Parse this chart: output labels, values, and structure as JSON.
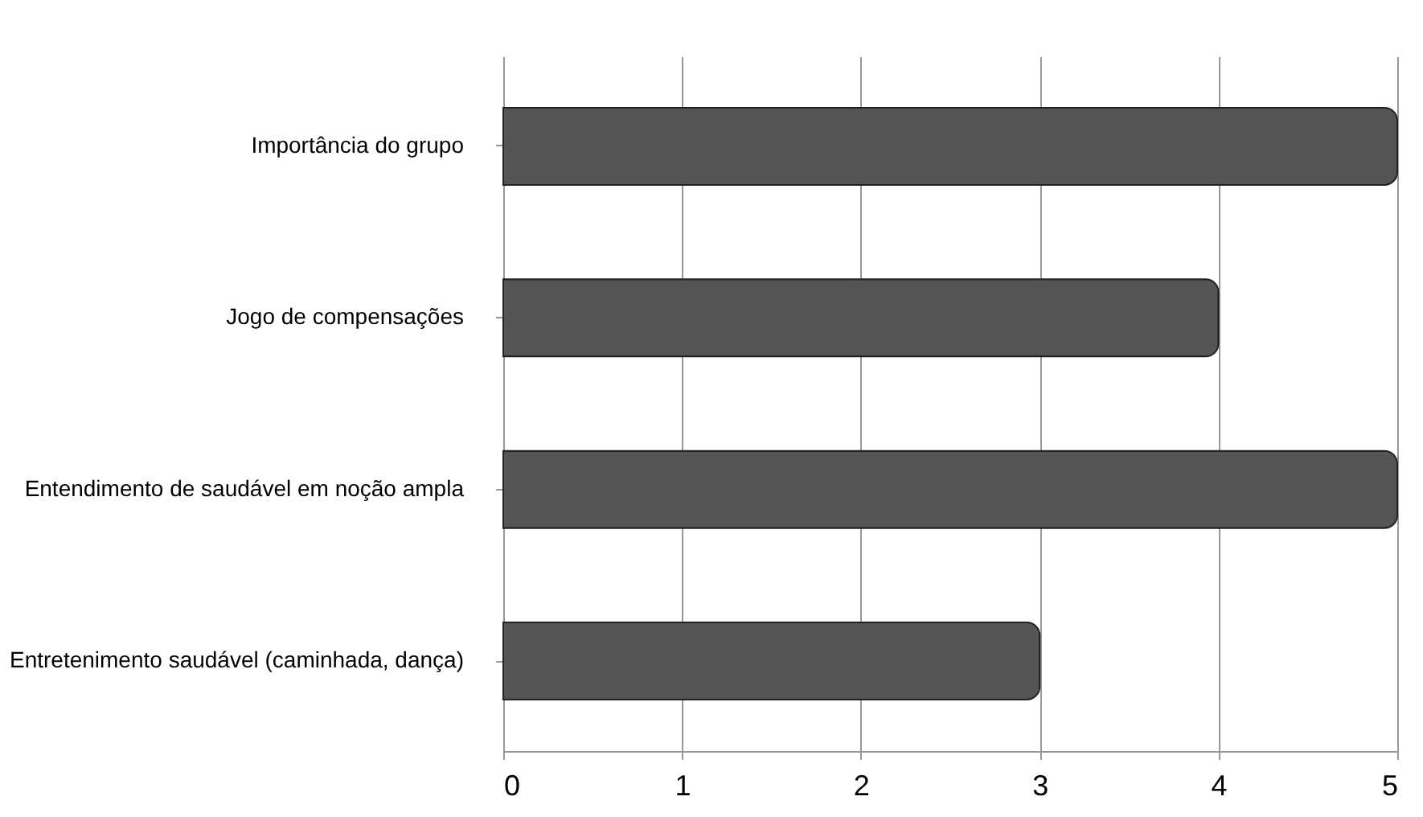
{
  "chart_data": {
    "type": "bar",
    "orientation": "horizontal",
    "categories": [
      "Importância do grupo",
      "Jogo de compensações",
      "Entendimento de saudável em noção ampla",
      "Entretenimento saudável (caminhada, dança)"
    ],
    "values": [
      5,
      4,
      5,
      3
    ],
    "color": "#555555",
    "xlim": [
      0,
      5
    ],
    "xticks": [
      0,
      1,
      2,
      3,
      4,
      5
    ],
    "grid": "x"
  }
}
